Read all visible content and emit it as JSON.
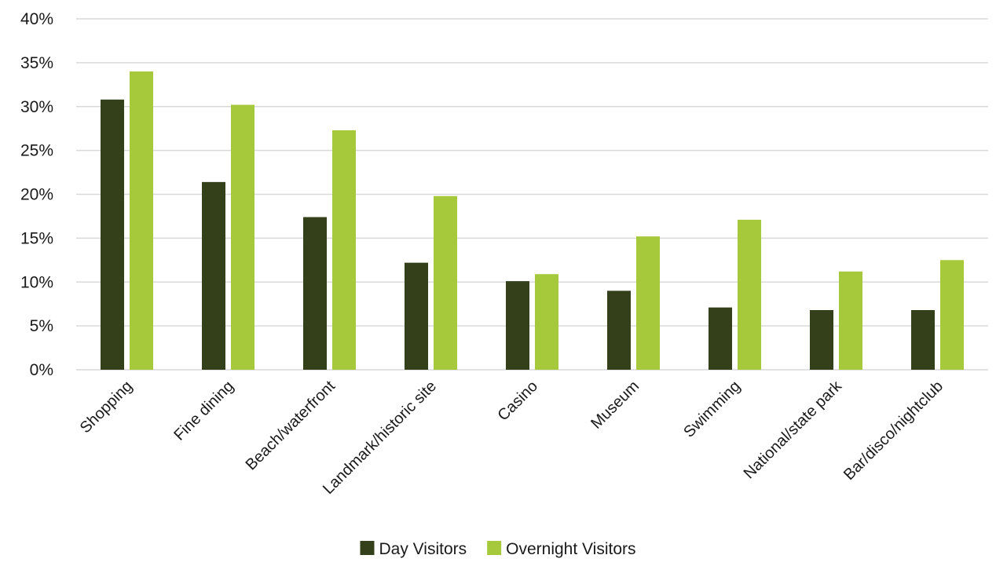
{
  "chart_data": {
    "type": "bar",
    "title": "",
    "xlabel": "",
    "ylabel": "",
    "ylim": [
      0,
      40
    ],
    "yticks": [
      "0%",
      "5%",
      "10%",
      "15%",
      "20%",
      "25%",
      "30%",
      "35%",
      "40%"
    ],
    "grid": true,
    "legend_position": "bottom-center",
    "categories": [
      "Shopping",
      "Fine dining",
      "Beach/waterfront",
      "Landmark/historic site",
      "Casino",
      "Museum",
      "Swimming",
      "National/state park",
      "Bar/disco/nightclub"
    ],
    "series": [
      {
        "name": "Day Visitors",
        "color": "#334019",
        "values": [
          30.8,
          21.4,
          17.4,
          12.2,
          10.1,
          9.0,
          7.1,
          6.8,
          6.8
        ]
      },
      {
        "name": "Overnight Visitors",
        "color": "#a5c93b",
        "values": [
          34.0,
          30.2,
          27.3,
          19.8,
          10.9,
          15.2,
          17.1,
          11.2,
          12.5
        ]
      }
    ]
  }
}
